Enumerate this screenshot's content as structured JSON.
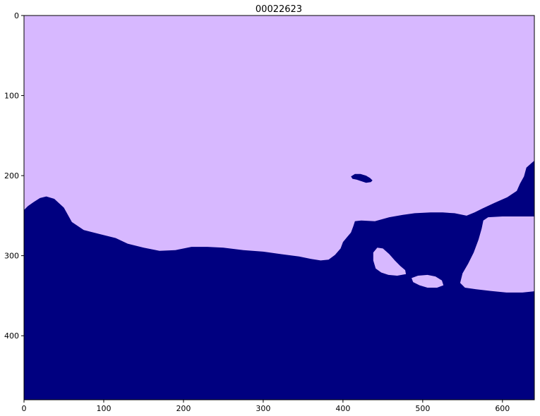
{
  "chart_data": {
    "type": "heatmap",
    "title": "00022623",
    "xlabel": "",
    "ylabel": "",
    "xlim": [
      0,
      640
    ],
    "ylim": [
      480,
      0
    ],
    "x_ticks": [
      0,
      100,
      200,
      300,
      400,
      500,
      600
    ],
    "y_ticks": [
      0,
      100,
      200,
      300,
      400
    ],
    "grid": false,
    "classes": [
      {
        "value": 0,
        "color": "#d7b8ff"
      },
      {
        "value": 1,
        "color": "#000080"
      }
    ],
    "regions": [
      {
        "class": 1,
        "polygon": [
          [
            0,
            243
          ],
          [
            5,
            238
          ],
          [
            12,
            233
          ],
          [
            20,
            228
          ],
          [
            28,
            226
          ],
          [
            38,
            229
          ],
          [
            50,
            240
          ],
          [
            60,
            258
          ],
          [
            75,
            268
          ],
          [
            95,
            273
          ],
          [
            115,
            278
          ],
          [
            130,
            285
          ],
          [
            150,
            290
          ],
          [
            170,
            294
          ],
          [
            190,
            293
          ],
          [
            210,
            289
          ],
          [
            230,
            289
          ],
          [
            250,
            290
          ],
          [
            275,
            293
          ],
          [
            300,
            295
          ],
          [
            322,
            298
          ],
          [
            345,
            301
          ],
          [
            360,
            304
          ],
          [
            372,
            306
          ],
          [
            382,
            305
          ],
          [
            390,
            299
          ],
          [
            397,
            291
          ],
          [
            400,
            283
          ],
          [
            405,
            277
          ],
          [
            410,
            271
          ],
          [
            413,
            263
          ],
          [
            415,
            257
          ],
          [
            423,
            256
          ],
          [
            440,
            257
          ],
          [
            458,
            252
          ],
          [
            475,
            249
          ],
          [
            490,
            247
          ],
          [
            510,
            246
          ],
          [
            525,
            246
          ],
          [
            540,
            247
          ],
          [
            555,
            250
          ],
          [
            565,
            246
          ],
          [
            575,
            241
          ],
          [
            590,
            234
          ],
          [
            606,
            227
          ],
          [
            618,
            219
          ],
          [
            622,
            210
          ],
          [
            627,
            201
          ],
          [
            630,
            190
          ],
          [
            638,
            183
          ],
          [
            648,
            175
          ],
          [
            662,
            170
          ],
          [
            675,
            169
          ],
          [
            683,
            170
          ],
          [
            683,
            250
          ],
          [
            665,
            251
          ],
          [
            645,
            251
          ],
          [
            620,
            251
          ],
          [
            600,
            251
          ],
          [
            582,
            252
          ],
          [
            576,
            256
          ],
          [
            574,
            266
          ],
          [
            570,
            280
          ],
          [
            564,
            296
          ],
          [
            557,
            310
          ],
          [
            550,
            322
          ],
          [
            547,
            334
          ],
          [
            553,
            340
          ],
          [
            567,
            342
          ],
          [
            585,
            344
          ],
          [
            605,
            346
          ],
          [
            625,
            346
          ],
          [
            645,
            344
          ],
          [
            665,
            339
          ],
          [
            676,
            334
          ],
          [
            683,
            330
          ],
          [
            683,
            480
          ],
          [
            0,
            480
          ]
        ]
      },
      {
        "class": 0,
        "polygon": [
          [
            438,
            296
          ],
          [
            443,
            290
          ],
          [
            450,
            291
          ],
          [
            458,
            298
          ],
          [
            465,
            306
          ],
          [
            472,
            313
          ],
          [
            478,
            318
          ],
          [
            479,
            323
          ],
          [
            468,
            325
          ],
          [
            457,
            324
          ],
          [
            448,
            321
          ],
          [
            441,
            316
          ],
          [
            438,
            306
          ]
        ]
      },
      {
        "class": 0,
        "polygon": [
          [
            486,
            328
          ],
          [
            494,
            325
          ],
          [
            506,
            324
          ],
          [
            516,
            326
          ],
          [
            524,
            331
          ],
          [
            526,
            337
          ],
          [
            518,
            340
          ],
          [
            506,
            340
          ],
          [
            496,
            337
          ],
          [
            488,
            333
          ]
        ]
      },
      {
        "class": 1,
        "polygon": [
          [
            410,
            201
          ],
          [
            415,
            198
          ],
          [
            422,
            198
          ],
          [
            429,
            200
          ],
          [
            434,
            203
          ],
          [
            437,
            206
          ],
          [
            435,
            208
          ],
          [
            429,
            209
          ],
          [
            423,
            207
          ],
          [
            417,
            205
          ],
          [
            412,
            204
          ]
        ]
      }
    ]
  }
}
